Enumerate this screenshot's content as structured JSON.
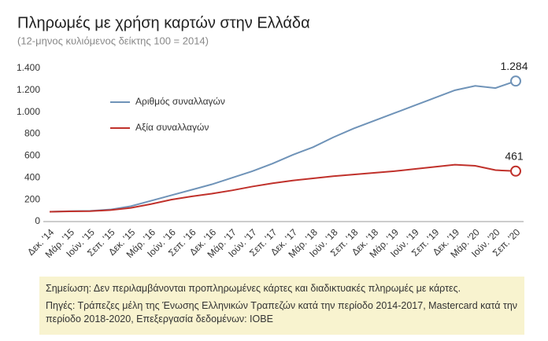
{
  "chart_data": {
    "type": "line",
    "title": "Πληρωμές με χρήση καρτών στην Ελλάδα",
    "subtitle": "(12-μηνος κυλιόμενος δείκτης 100 = 2014)",
    "categories": [
      "Δεκ. '14",
      "Μάρ. '15",
      "Ιούν. '15",
      "Σεπ. '15",
      "Δεκ. '15",
      "Μάρ. '16",
      "Ιούν. '16",
      "Σεπ. '16",
      "Δεκ. '16",
      "Μάρ. '17",
      "Ιούν. '17",
      "Σεπ. '17",
      "Δεκ. '17",
      "Μάρ. '18",
      "Ιούν. '18",
      "Σεπ. '18",
      "Δεκ. '18",
      "Μάρ. '19",
      "Ιούν. '19",
      "Σεπ. '19",
      "Δεκ. '19",
      "Μάρ. '20",
      "Ιούν. '20",
      "Σεπ. '20"
    ],
    "series": [
      {
        "name": "Αριθμός συναλλαγών",
        "color": "#6f93b8",
        "values": [
          90,
          95,
          98,
          110,
          140,
          190,
          240,
          290,
          340,
          400,
          460,
          530,
          610,
          680,
          770,
          850,
          920,
          990,
          1060,
          1130,
          1200,
          1240,
          1220,
          1284
        ],
        "value_labels": [
          null,
          null,
          null,
          null,
          null,
          null,
          null,
          null,
          null,
          null,
          null,
          null,
          null,
          null,
          null,
          null,
          null,
          null,
          null,
          null,
          null,
          null,
          null,
          "1.284"
        ]
      },
      {
        "name": "Αξία συναλλαγών",
        "color": "#c0312b",
        "values": [
          90,
          93,
          95,
          105,
          125,
          160,
          200,
          230,
          255,
          285,
          320,
          350,
          375,
          395,
          415,
          430,
          445,
          460,
          480,
          500,
          520,
          510,
          470,
          461
        ],
        "value_labels": [
          null,
          null,
          null,
          null,
          null,
          null,
          null,
          null,
          null,
          null,
          null,
          null,
          null,
          null,
          null,
          null,
          null,
          null,
          null,
          null,
          null,
          null,
          null,
          "461"
        ]
      }
    ],
    "ylim": [
      0,
      1400
    ],
    "yticks": [
      0,
      200,
      400,
      600,
      800,
      {
        "value": 1000,
        "label": "1.000"
      },
      {
        "value": 1200,
        "label": "1.200"
      },
      {
        "value": 1400,
        "label": "1.400"
      }
    ],
    "grid": false,
    "notes": [
      "Σημείωση: Δεν περιλαμβάνονται προπληρωμένες κάρτες και διαδικτυακές πληρωμές με κάρτες.",
      "Πηγές: Τράπεζες μέλη της Ένωσης Ελληνικών Τραπεζών κατά την περίοδο 2014-2017, Mastercard κατά την περίοδο 2018-2020, Επεξεργασία δεδομένων: ΙΟΒΕ"
    ]
  }
}
